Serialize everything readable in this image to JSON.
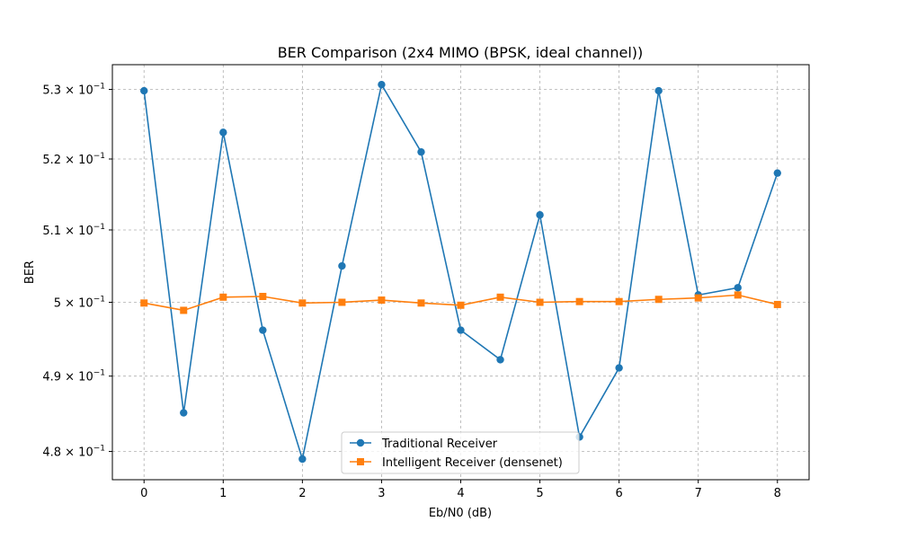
{
  "chart_data": {
    "type": "line",
    "title": "BER Comparison (2x4 MIMO (BPSK, ideal channel))",
    "xlabel": "Eb/N0 (dB)",
    "ylabel": "BER",
    "x": [
      0,
      0.5,
      1,
      1.5,
      2,
      2.5,
      3,
      3.5,
      4,
      4.5,
      5,
      5.5,
      6,
      6.5,
      7,
      7.5,
      8
    ],
    "xlim": [
      -0.4,
      8.4
    ],
    "ylim": [
      0.4763,
      0.5336
    ],
    "yscale": "log",
    "x_ticks": [
      0,
      1,
      2,
      3,
      4,
      5,
      6,
      7,
      8
    ],
    "x_tick_labels": [
      "0",
      "1",
      "2",
      "3",
      "4",
      "5",
      "6",
      "7",
      "8"
    ],
    "y_ticks": [
      {
        "value": 0.48,
        "mantissa": "4.8",
        "base": "10",
        "exp": "−1"
      },
      {
        "value": 0.49,
        "mantissa": "4.9",
        "base": "10",
        "exp": "−1"
      },
      {
        "value": 0.5,
        "mantissa": "5",
        "base": "10",
        "exp": "−1"
      },
      {
        "value": 0.51,
        "mantissa": "5.1",
        "base": "10",
        "exp": "−1"
      },
      {
        "value": 0.52,
        "mantissa": "5.2",
        "base": "10",
        "exp": "−1"
      },
      {
        "value": 0.53,
        "mantissa": "5.3",
        "base": "10",
        "exp": "−1"
      }
    ],
    "grid": true,
    "legend_position": "bottom-center",
    "series": [
      {
        "name": "Traditional Receiver",
        "color": "#1f77b4",
        "marker": "circle",
        "values": [
          0.5298,
          0.4851,
          0.5238,
          0.4962,
          0.479,
          0.505,
          0.5307,
          0.521,
          0.4962,
          0.4922,
          0.5121,
          0.4819,
          0.4911,
          0.5298,
          0.501,
          0.502,
          0.518
        ]
      },
      {
        "name": "Intelligent Receiver (densenet)",
        "color": "#ff7f0e",
        "marker": "square",
        "values": [
          0.4999,
          0.4989,
          0.5007,
          0.5008,
          0.4999,
          0.5,
          0.5003,
          0.4999,
          0.4996,
          0.5007,
          0.5,
          0.5001,
          0.5001,
          0.5004,
          0.5006,
          0.501,
          0.4997
        ]
      }
    ]
  }
}
